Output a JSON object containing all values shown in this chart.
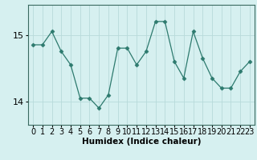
{
  "x": [
    0,
    1,
    2,
    3,
    4,
    5,
    6,
    7,
    8,
    9,
    10,
    11,
    12,
    13,
    14,
    15,
    16,
    17,
    18,
    19,
    20,
    21,
    22,
    23
  ],
  "y": [
    14.85,
    14.85,
    15.05,
    14.75,
    14.55,
    14.05,
    14.05,
    13.9,
    14.1,
    14.8,
    14.8,
    14.55,
    14.75,
    15.2,
    15.2,
    14.6,
    14.35,
    15.05,
    14.65,
    14.35,
    14.2,
    14.2,
    14.45,
    14.6
  ],
  "line_color": "#2d7a6e",
  "marker": "D",
  "marker_size": 2.5,
  "bg_color": "#d6f0f0",
  "grid_color": "#b8dada",
  "xlabel": "Humidex (Indice chaleur)",
  "yticks": [
    14,
    15
  ],
  "ylim": [
    13.65,
    15.45
  ],
  "xlim": [
    -0.5,
    23.5
  ],
  "xlabel_fontsize": 7.5,
  "tick_fontsize": 7,
  "figsize": [
    3.2,
    2.0
  ],
  "dpi": 100
}
